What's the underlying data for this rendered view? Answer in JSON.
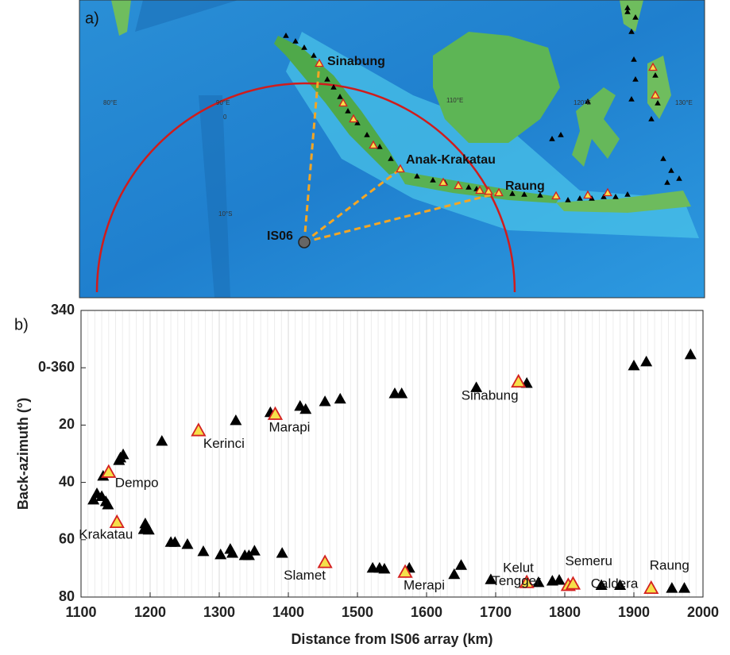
{
  "panel_labels": [
    "a)",
    "b)"
  ],
  "map": {
    "labels": {
      "sinabung": "Sinabung",
      "anak_krakatau": "Anak-Krakatau",
      "raung": "Raung",
      "station": "IS06"
    },
    "graticule": [
      "80°E",
      "90°E",
      "0",
      "110°E",
      "120°E",
      "130°E",
      "10°S"
    ]
  },
  "chart_data": {
    "type": "scatter",
    "x_label": "Distance from IS06 array (km)",
    "y_label": "Back-azimuth (°)",
    "xlim": [
      1100,
      2000
    ],
    "xticks": [
      1100,
      1200,
      1300,
      1400,
      1500,
      1600,
      1700,
      1800,
      1900,
      2000
    ],
    "ylim": [
      -20,
      80
    ],
    "y_inverted": true,
    "yticks": [
      {
        "value": -20,
        "label": "340"
      },
      {
        "value": 0,
        "label": "0-360"
      },
      20,
      40,
      60,
      80
    ],
    "grid": "x",
    "minor_grid": true,
    "series": [
      {
        "color": "#000000",
        "x": [
          1118,
          1123,
          1130,
          1136,
          1139,
          1132,
          1155,
          1161,
          1157,
          1193,
          1198,
          1191,
          1217,
          1230,
          1236,
          1254,
          1277,
          1302,
          1316,
          1319,
          1337,
          1343,
          1351,
          1391,
          1324,
          1374,
          1417,
          1425,
          1453,
          1475,
          1522,
          1532,
          1539,
          1575,
          1554,
          1564,
          1640,
          1650,
          1693,
          1672,
          1745,
          1762,
          1782,
          1792,
          1853,
          1880,
          1955,
          1973,
          1900,
          1918,
          1982
        ],
        "values": [
          46.2,
          44,
          45,
          46.8,
          47.9,
          37.9,
          32.4,
          30.4,
          31.5,
          54.5,
          56.7,
          56.5,
          25.7,
          61,
          61,
          61.7,
          64.2,
          65.3,
          63.4,
          64.8,
          65.6,
          65.6,
          64,
          64.8,
          18.5,
          15.7,
          13.5,
          14.6,
          11.9,
          11,
          70,
          70,
          70.3,
          70,
          9.1,
          9.1,
          72.2,
          69,
          74,
          7,
          5.5,
          75,
          74.5,
          74.2,
          76,
          76,
          77,
          77,
          -0.6,
          -2,
          -4.5
        ]
      },
      {
        "color": "#f5e04a",
        "edge_color": "#d42020",
        "x": [
          1140,
          1152,
          1270,
          1381,
          1453,
          1569,
          1733,
          1745,
          1805,
          1812,
          1925
        ],
        "values": [
          36.5,
          54,
          22,
          16.3,
          68,
          71.4,
          5,
          75,
          76,
          75.5,
          77
        ],
        "labels": [
          "Dempo",
          "Krakatau",
          "Kerinci",
          "Marapi",
          "Slamet",
          "Merapi",
          "Sinabung",
          "Kelut",
          "Tengger",
          "Semeru",
          "Caldera"
        ]
      }
    ],
    "extra_labels": [
      "Raung"
    ]
  }
}
